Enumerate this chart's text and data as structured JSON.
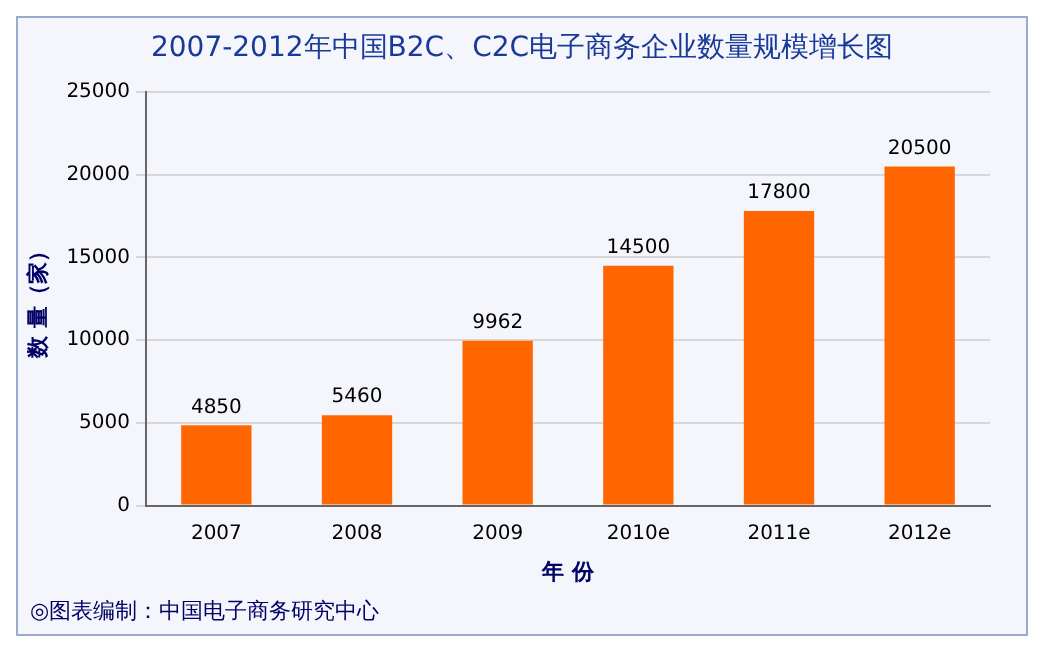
{
  "chart_data": {
    "type": "bar",
    "title": "2007-2012年中国B2C、C2C电子商务企业数量规模增长图",
    "xlabel": "年 份",
    "ylabel": "数 量（家）",
    "categories": [
      "2007",
      "2008",
      "2009",
      "2010e",
      "2011e",
      "2012e"
    ],
    "values": [
      4850,
      5460,
      9962,
      14500,
      17800,
      20500
    ],
    "color": "#ff6600",
    "ylim": [
      0,
      25000
    ],
    "yticks": [
      0,
      5000,
      10000,
      15000,
      20000,
      25000
    ],
    "grid": "y",
    "data_labels": true,
    "annotations": [
      "◎图表编制：中国电子商务研究中心"
    ]
  }
}
